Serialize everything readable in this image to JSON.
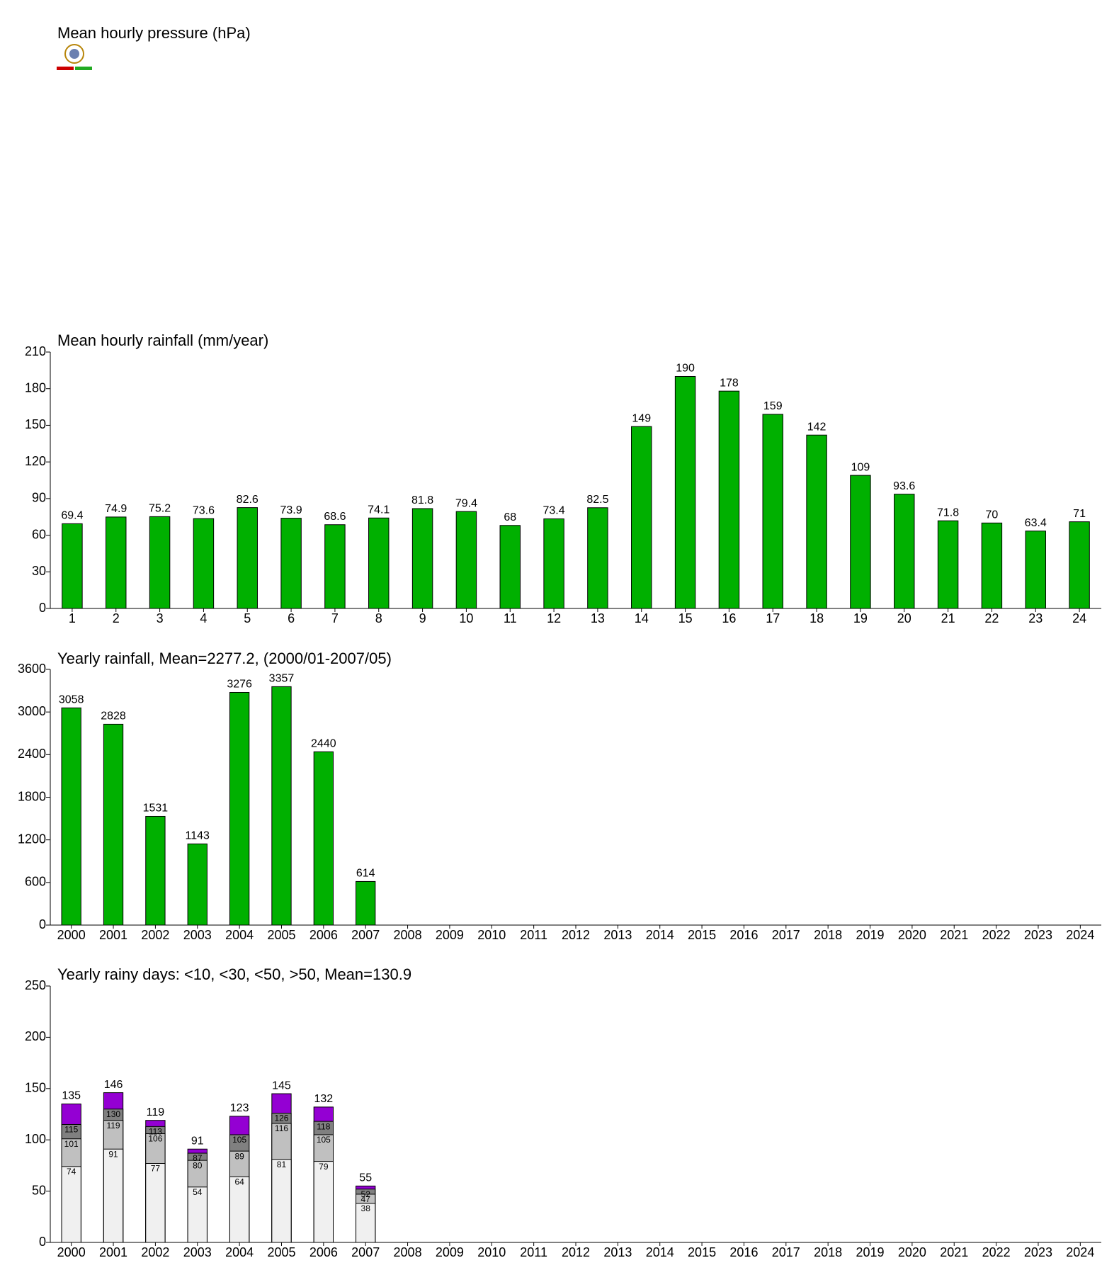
{
  "chart_data": [
    {
      "type": "bar",
      "title": "Mean hourly pressure (hPa)"
    },
    {
      "type": "bar",
      "title": "Mean hourly rainfall (mm/year)",
      "categories": [
        "1",
        "2",
        "3",
        "4",
        "5",
        "6",
        "7",
        "8",
        "9",
        "10",
        "11",
        "12",
        "13",
        "14",
        "15",
        "16",
        "17",
        "18",
        "19",
        "20",
        "21",
        "22",
        "23",
        "24"
      ],
      "values": [
        69.4,
        74.9,
        75.2,
        73.6,
        82.6,
        73.9,
        68.6,
        74.1,
        81.8,
        79.4,
        68,
        73.4,
        82.5,
        149,
        190,
        178,
        159,
        142,
        109,
        93.6,
        71.8,
        70,
        63.4,
        71
      ],
      "color": "#00b000",
      "ylim": [
        0,
        210
      ],
      "yticks": [
        0,
        30,
        60,
        90,
        120,
        150,
        180,
        210
      ]
    },
    {
      "type": "bar",
      "title": "Yearly rainfall, Mean=2277.2, (2000/01-2007/05)",
      "categories": [
        "2000",
        "2001",
        "2002",
        "2003",
        "2004",
        "2005",
        "2006",
        "2007",
        "2008",
        "2009",
        "2010",
        "2011",
        "2012",
        "2013",
        "2014",
        "2015",
        "2016",
        "2017",
        "2018",
        "2019",
        "2020",
        "2021",
        "2022",
        "2023",
        "2024"
      ],
      "values": [
        3058,
        2828,
        1531,
        1143,
        3276,
        3357,
        2440,
        614,
        null,
        null,
        null,
        null,
        null,
        null,
        null,
        null,
        null,
        null,
        null,
        null,
        null,
        null,
        null,
        null,
        null
      ],
      "color": "#00b000",
      "ylim": [
        0,
        3600
      ],
      "yticks": [
        0,
        600,
        1200,
        1800,
        2400,
        3000,
        3600
      ]
    },
    {
      "type": "bar",
      "barmode": "overlay",
      "title": "Yearly rainy days: <10, <30, <50, >50, Mean=130.9",
      "categories": [
        "2000",
        "2001",
        "2002",
        "2003",
        "2004",
        "2005",
        "2006",
        "2007",
        "2008",
        "2009",
        "2010",
        "2011",
        "2012",
        "2013",
        "2014",
        "2015",
        "2016",
        "2017",
        "2018",
        "2019",
        "2020",
        "2021",
        "2022",
        "2023",
        "2024"
      ],
      "series": [
        {
          "color": "#f0f0f0",
          "values": [
            74,
            91,
            77,
            54,
            64,
            81,
            79,
            38,
            null,
            null,
            null,
            null,
            null,
            null,
            null,
            null,
            null,
            null,
            null,
            null,
            null,
            null,
            null,
            null,
            null
          ]
        },
        {
          "color": "#c0c0c0",
          "values": [
            101,
            119,
            106,
            80,
            89,
            116,
            105,
            47,
            null,
            null,
            null,
            null,
            null,
            null,
            null,
            null,
            null,
            null,
            null,
            null,
            null,
            null,
            null,
            null,
            null
          ]
        },
        {
          "color": "#808080",
          "values": [
            115,
            130,
            113,
            87,
            105,
            126,
            118,
            52,
            null,
            null,
            null,
            null,
            null,
            null,
            null,
            null,
            null,
            null,
            null,
            null,
            null,
            null,
            null,
            null,
            null
          ]
        },
        {
          "color": "#9400d3",
          "values": [
            135,
            146,
            119,
            91,
            123,
            145,
            132,
            55,
            null,
            null,
            null,
            null,
            null,
            null,
            null,
            null,
            null,
            null,
            null,
            null,
            null,
            null,
            null,
            null,
            null
          ]
        }
      ],
      "ylim": [
        0,
        250
      ],
      "yticks": [
        0,
        50,
        100,
        150,
        200,
        250
      ]
    }
  ]
}
